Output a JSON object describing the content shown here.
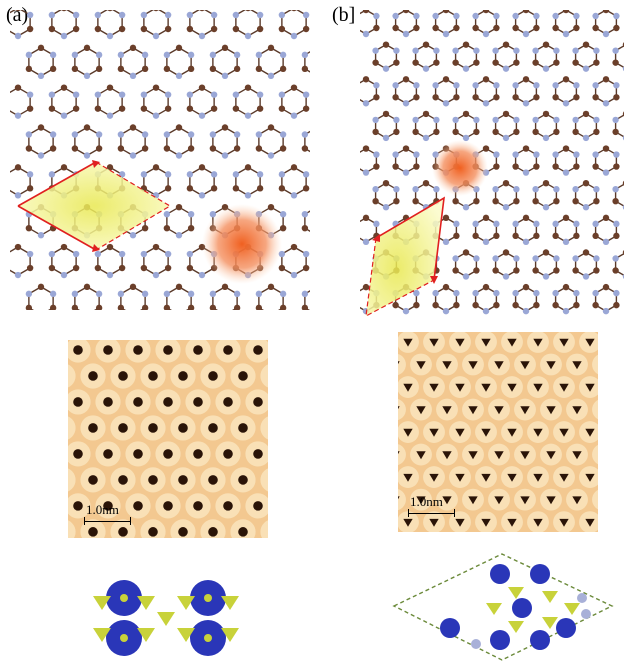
{
  "panels": {
    "a": {
      "label": "(a)",
      "scale_label": "1.0nm"
    },
    "b": {
      "label": "(b]",
      "scale_label": "1.0nm"
    }
  },
  "colors": {
    "carbon": "#6b3f2a",
    "nitrogen": "#9aa7d6",
    "bond": "#5a3a2a",
    "unit_cell": "#e02020",
    "highlight": "#f5f08a",
    "hotspot": "#f07030",
    "stm_bright": "#f9e2b8",
    "stm_dark": "#2a1408",
    "orbital_blue": "#2a36b8",
    "orbital_yellow": "#c8d23a"
  }
}
